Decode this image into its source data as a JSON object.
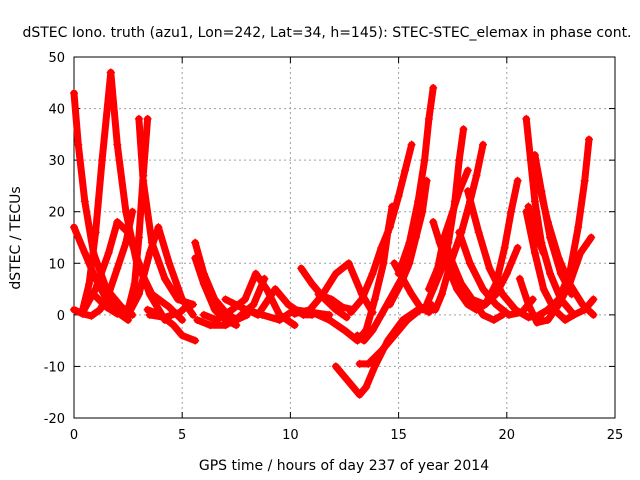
{
  "chart_data": {
    "type": "line",
    "title": "dSTEC Iono. truth (azu1, Lon=242, Lat=34, h=145): STEC-STEC_elemax in phase cont.",
    "xlabel": "GPS time / hours of day 237 of year 2014",
    "ylabel": "dSTEC  / TECUs",
    "xlim": [
      0,
      25
    ],
    "ylim": [
      -20,
      50
    ],
    "xticks": [
      "0",
      "5",
      "10",
      "15",
      "20",
      "25"
    ],
    "yticks": [
      "-20",
      "-10",
      "0",
      "10",
      "20",
      "30",
      "40",
      "50"
    ],
    "grid": true,
    "marker": "plus",
    "colors": {
      "series": "#ff0000"
    },
    "series": [
      {
        "values": [
          [
            0.0,
            43
          ],
          [
            0.2,
            33
          ],
          [
            0.5,
            22
          ],
          [
            0.9,
            12
          ],
          [
            1.5,
            5
          ],
          [
            2.2,
            1.5
          ],
          [
            2.7,
            0
          ]
        ]
      },
      {
        "values": [
          [
            0.0,
            17
          ],
          [
            0.5,
            12
          ],
          [
            1.0,
            7
          ],
          [
            1.5,
            3
          ],
          [
            2.0,
            0.5
          ],
          [
            2.5,
            -1
          ]
        ]
      },
      {
        "values": [
          [
            0.0,
            1
          ],
          [
            0.4,
            0.2
          ],
          [
            0.8,
            -0.2
          ],
          [
            1.2,
            1
          ],
          [
            1.6,
            4
          ],
          [
            2.0,
            9
          ],
          [
            2.4,
            14
          ],
          [
            2.7,
            20
          ]
        ]
      },
      {
        "values": [
          [
            0.4,
            0.5
          ],
          [
            1.0,
            5
          ],
          [
            1.6,
            12
          ],
          [
            2.0,
            18
          ],
          [
            2.5,
            16
          ],
          [
            3.0,
            10
          ],
          [
            3.5,
            4
          ],
          [
            4.2,
            -1
          ]
        ]
      },
      {
        "values": [
          [
            0.4,
            1
          ],
          [
            0.7,
            6
          ],
          [
            1.0,
            16
          ],
          [
            1.3,
            30
          ],
          [
            1.7,
            47
          ]
        ]
      },
      {
        "values": [
          [
            1.7,
            47
          ],
          [
            2.0,
            33
          ],
          [
            2.4,
            20
          ],
          [
            2.9,
            10
          ],
          [
            3.6,
            4
          ],
          [
            4.4,
            1.5
          ],
          [
            5.0,
            -1
          ]
        ]
      },
      {
        "values": [
          [
            0.9,
            4
          ],
          [
            1.5,
            1.5
          ],
          [
            2.0,
            0.2
          ],
          [
            2.5,
            1
          ],
          [
            2.8,
            6
          ],
          [
            3.0,
            15
          ],
          [
            3.2,
            27
          ],
          [
            3.4,
            38
          ]
        ]
      },
      {
        "values": [
          [
            3.0,
            38
          ],
          [
            3.2,
            26
          ],
          [
            3.6,
            14
          ],
          [
            4.2,
            7
          ],
          [
            4.8,
            3
          ],
          [
            5.5,
            2
          ]
        ]
      },
      {
        "values": [
          [
            3.4,
            1
          ],
          [
            4.0,
            0
          ],
          [
            4.6,
            -2
          ],
          [
            5.0,
            -4
          ],
          [
            5.6,
            -5
          ]
        ]
      },
      {
        "values": [
          [
            2.5,
            0
          ],
          [
            3.0,
            4
          ],
          [
            3.5,
            12
          ],
          [
            3.9,
            17
          ],
          [
            4.4,
            10
          ],
          [
            5.0,
            3
          ],
          [
            5.5,
            0
          ]
        ]
      },
      {
        "values": [
          [
            3.5,
            0
          ],
          [
            4.2,
            -0.5
          ],
          [
            4.9,
            0.5
          ],
          [
            5.3,
            2
          ]
        ]
      },
      {
        "values": [
          [
            5.6,
            14
          ],
          [
            6.0,
            8
          ],
          [
            6.5,
            3
          ],
          [
            7.0,
            0.5
          ],
          [
            7.5,
            -1
          ],
          [
            8.0,
            0
          ]
        ]
      },
      {
        "values": [
          [
            5.6,
            11
          ],
          [
            6.0,
            6
          ],
          [
            6.5,
            1
          ],
          [
            7.0,
            -1
          ],
          [
            7.5,
            -2
          ]
        ]
      },
      {
        "values": [
          [
            5.7,
            -1
          ],
          [
            6.3,
            -2
          ],
          [
            7.0,
            -2
          ],
          [
            7.6,
            -0.5
          ],
          [
            8.3,
            2
          ],
          [
            8.8,
            7
          ]
        ]
      },
      {
        "values": [
          [
            6.0,
            0
          ],
          [
            6.6,
            -1
          ],
          [
            7.3,
            1
          ],
          [
            7.9,
            3
          ],
          [
            8.4,
            8
          ],
          [
            8.9,
            5
          ],
          [
            9.5,
            0
          ],
          [
            10.2,
            -2
          ]
        ]
      },
      {
        "values": [
          [
            7.0,
            3
          ],
          [
            7.7,
            1.5
          ],
          [
            8.5,
            0
          ],
          [
            9.3,
            5
          ],
          [
            9.9,
            2
          ],
          [
            10.6,
            0
          ],
          [
            11.0,
            0
          ]
        ]
      },
      {
        "values": [
          [
            8.0,
            1
          ],
          [
            8.7,
            0
          ],
          [
            9.5,
            -1
          ],
          [
            10.2,
            1
          ],
          [
            11.0,
            0.5
          ],
          [
            11.8,
            0
          ]
        ]
      },
      {
        "values": [
          [
            10.5,
            9
          ],
          [
            11.0,
            6
          ],
          [
            11.6,
            3
          ],
          [
            12.1,
            1
          ],
          [
            12.6,
            -0.5
          ]
        ]
      },
      {
        "values": [
          [
            10.2,
            0.2
          ],
          [
            10.9,
            1
          ],
          [
            11.5,
            4
          ],
          [
            12.1,
            8
          ],
          [
            12.7,
            10
          ],
          [
            13.3,
            4
          ],
          [
            13.8,
            0.5
          ]
        ]
      },
      {
        "values": [
          [
            11.3,
            4
          ],
          [
            11.9,
            3
          ],
          [
            12.4,
            1.5
          ],
          [
            12.9,
            1
          ]
        ]
      },
      {
        "values": [
          [
            12.1,
            -10
          ],
          [
            12.5,
            -12
          ],
          [
            12.9,
            -14
          ],
          [
            13.2,
            -15.5
          ],
          [
            13.5,
            -14
          ],
          [
            13.9,
            -10
          ],
          [
            14.5,
            -5
          ],
          [
            15.2,
            -1
          ],
          [
            15.9,
            1
          ],
          [
            16.5,
            2
          ]
        ]
      },
      {
        "values": [
          [
            13.1,
            -4
          ],
          [
            13.4,
            -5
          ],
          [
            13.8,
            -3
          ],
          [
            14.2,
            0
          ],
          [
            14.6,
            3
          ],
          [
            15.0,
            6
          ],
          [
            15.4,
            9
          ]
        ]
      },
      {
        "values": [
          [
            13.2,
            -9.5
          ],
          [
            13.6,
            -9.5
          ],
          [
            14.2,
            -7
          ],
          [
            14.8,
            -4
          ],
          [
            15.4,
            -1
          ],
          [
            16.0,
            1
          ],
          [
            16.6,
            1
          ]
        ]
      },
      {
        "values": [
          [
            11.0,
            0.5
          ],
          [
            11.8,
            -1
          ],
          [
            12.5,
            -3
          ],
          [
            13.1,
            -5
          ],
          [
            13.5,
            -3
          ],
          [
            13.9,
            3
          ],
          [
            14.3,
            10
          ],
          [
            14.5,
            16
          ],
          [
            14.7,
            21
          ]
        ]
      },
      {
        "values": [
          [
            12.8,
            0.5
          ],
          [
            13.3,
            3
          ],
          [
            13.8,
            8
          ],
          [
            14.2,
            13
          ],
          [
            14.6,
            17
          ],
          [
            15.0,
            23
          ],
          [
            15.3,
            28
          ],
          [
            15.6,
            33
          ]
        ]
      },
      {
        "values": [
          [
            14.6,
            2
          ],
          [
            15.1,
            6
          ],
          [
            15.5,
            10
          ],
          [
            15.8,
            15
          ],
          [
            16.1,
            20
          ],
          [
            16.3,
            26
          ]
        ]
      },
      {
        "values": [
          [
            15.0,
            8
          ],
          [
            15.5,
            14
          ],
          [
            15.9,
            22
          ],
          [
            16.2,
            30
          ],
          [
            16.4,
            38
          ],
          [
            16.6,
            44
          ]
        ]
      },
      {
        "values": [
          [
            14.8,
            10
          ],
          [
            15.2,
            7
          ],
          [
            15.6,
            4
          ],
          [
            16.0,
            1.5
          ],
          [
            16.4,
            0.5
          ]
        ]
      },
      {
        "values": [
          [
            16.3,
            2
          ],
          [
            16.6,
            5
          ],
          [
            17.0,
            9
          ],
          [
            17.3,
            14
          ],
          [
            17.6,
            22
          ],
          [
            17.8,
            30
          ],
          [
            18.0,
            36
          ]
        ]
      },
      {
        "values": [
          [
            16.4,
            5
          ],
          [
            16.8,
            9
          ],
          [
            17.1,
            15
          ],
          [
            17.5,
            20
          ],
          [
            17.8,
            24
          ],
          [
            18.2,
            28
          ]
        ]
      },
      {
        "values": [
          [
            16.7,
            1
          ],
          [
            17.0,
            4
          ],
          [
            17.4,
            10
          ],
          [
            17.9,
            16
          ],
          [
            18.3,
            22
          ],
          [
            18.6,
            27
          ],
          [
            18.9,
            33
          ]
        ]
      },
      {
        "values": [
          [
            16.6,
            18
          ],
          [
            16.9,
            14
          ],
          [
            17.3,
            9
          ],
          [
            17.7,
            5
          ],
          [
            18.2,
            2
          ],
          [
            18.6,
            1
          ],
          [
            19.0,
            2
          ],
          [
            19.5,
            6
          ],
          [
            19.9,
            13
          ],
          [
            20.2,
            20
          ],
          [
            20.5,
            26
          ]
        ]
      },
      {
        "values": [
          [
            17.1,
            15
          ],
          [
            17.5,
            10
          ],
          [
            17.9,
            6
          ],
          [
            18.4,
            3
          ],
          [
            18.9,
            0
          ],
          [
            19.4,
            -1
          ],
          [
            19.8,
            0
          ]
        ]
      },
      {
        "values": [
          [
            17.8,
            16
          ],
          [
            18.3,
            10
          ],
          [
            18.9,
            5
          ],
          [
            19.5,
            2
          ],
          [
            20.1,
            0
          ],
          [
            20.7,
            0.5
          ],
          [
            21.2,
            3
          ]
        ]
      },
      {
        "values": [
          [
            18.2,
            24
          ],
          [
            18.7,
            16
          ],
          [
            19.2,
            9
          ],
          [
            19.8,
            4
          ],
          [
            20.4,
            1
          ],
          [
            21.0,
            -0.5
          ],
          [
            21.6,
            0
          ]
        ]
      },
      {
        "values": [
          [
            18.4,
            3
          ],
          [
            19.0,
            2
          ],
          [
            19.5,
            4
          ],
          [
            20.0,
            8
          ],
          [
            20.5,
            13
          ]
        ]
      },
      {
        "values": [
          [
            20.9,
            20
          ],
          [
            21.3,
            12
          ],
          [
            21.7,
            5
          ],
          [
            22.2,
            1
          ],
          [
            22.7,
            -1
          ],
          [
            23.1,
            0
          ]
        ]
      },
      {
        "values": [
          [
            20.6,
            7
          ],
          [
            21.0,
            2
          ],
          [
            21.4,
            -1.5
          ],
          [
            21.9,
            -1
          ],
          [
            22.4,
            2
          ],
          [
            22.9,
            6
          ],
          [
            23.4,
            12
          ],
          [
            23.9,
            15
          ]
        ]
      },
      {
        "values": [
          [
            21.5,
            25
          ],
          [
            21.9,
            18
          ],
          [
            22.4,
            11
          ],
          [
            22.9,
            6
          ],
          [
            23.5,
            2
          ],
          [
            24.0,
            0
          ]
        ]
      },
      {
        "values": [
          [
            20.9,
            38
          ],
          [
            21.1,
            30
          ],
          [
            21.3,
            22
          ],
          [
            21.6,
            14
          ],
          [
            22.0,
            8
          ],
          [
            22.5,
            3
          ],
          [
            23.1,
            0
          ],
          [
            23.6,
            1
          ],
          [
            24.0,
            3
          ]
        ]
      },
      {
        "values": [
          [
            21.3,
            31
          ],
          [
            21.6,
            24
          ],
          [
            22.0,
            15
          ],
          [
            22.5,
            8
          ],
          [
            23.0,
            4
          ]
        ]
      },
      {
        "values": [
          [
            21.5,
            0
          ],
          [
            21.9,
            1
          ],
          [
            22.4,
            3
          ],
          [
            22.9,
            8
          ],
          [
            23.3,
            17
          ],
          [
            23.6,
            26
          ],
          [
            23.8,
            34
          ]
        ]
      },
      {
        "values": [
          [
            21.0,
            21
          ],
          [
            21.3,
            16
          ],
          [
            21.7,
            12
          ]
        ]
      }
    ]
  }
}
